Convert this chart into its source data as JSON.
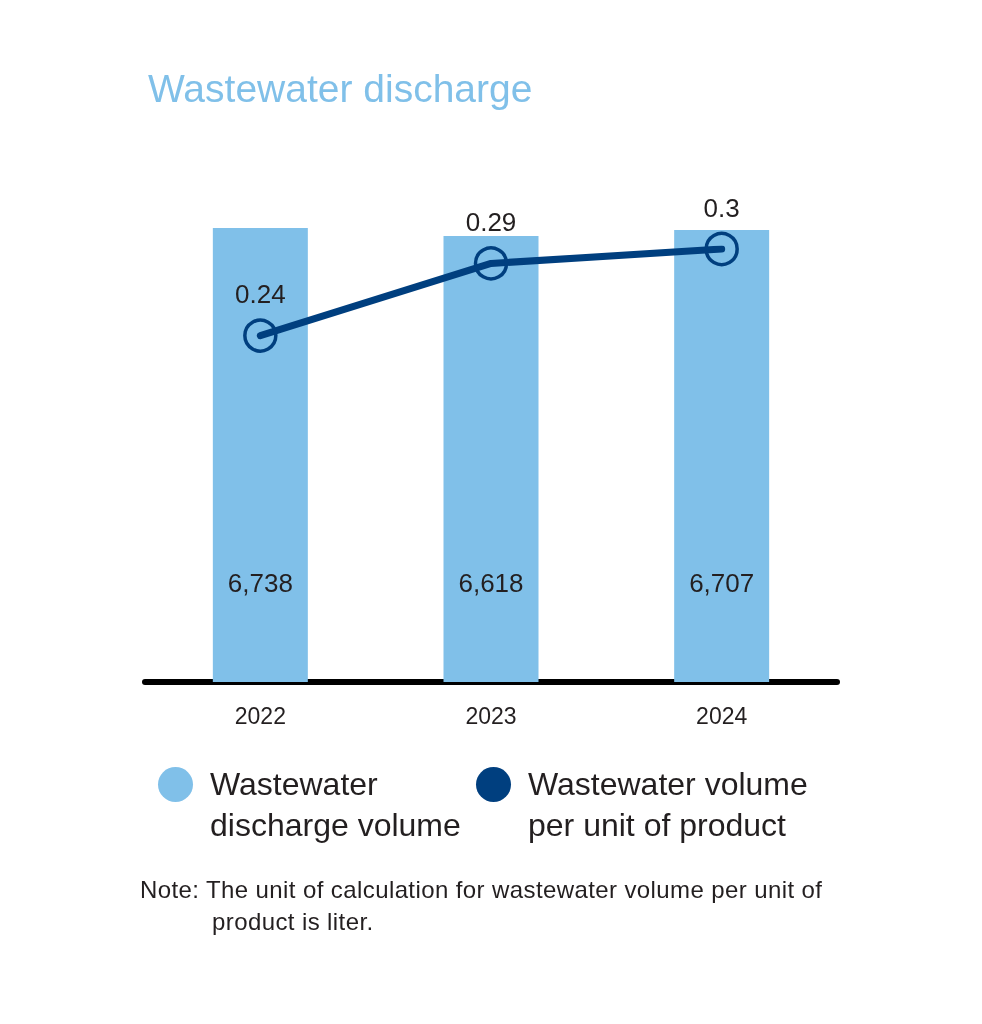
{
  "chart_data": {
    "type": "bar",
    "title": "Wastewater discharge",
    "categories": [
      "2022",
      "2023",
      "2024"
    ],
    "series": [
      {
        "name": "Wastewater discharge volume",
        "color": "#80c0e9",
        "values": [
          6738,
          6618,
          6707
        ],
        "value_labels": [
          "6,738",
          "6,618",
          "6,707"
        ]
      },
      {
        "name": "Wastewater volume per unit of product",
        "type": "line",
        "axis": "y2",
        "color": "#003f7f",
        "values": [
          0.24,
          0.29,
          0.3
        ],
        "value_labels": [
          "0.24",
          "0.29",
          "0.3"
        ]
      }
    ],
    "tick_labels": "x",
    "marker": "circle",
    "legend": "bottom",
    "annotations": [
      "Note: The unit of calculation for wastewater volume per unit of product is liter."
    ]
  }
}
